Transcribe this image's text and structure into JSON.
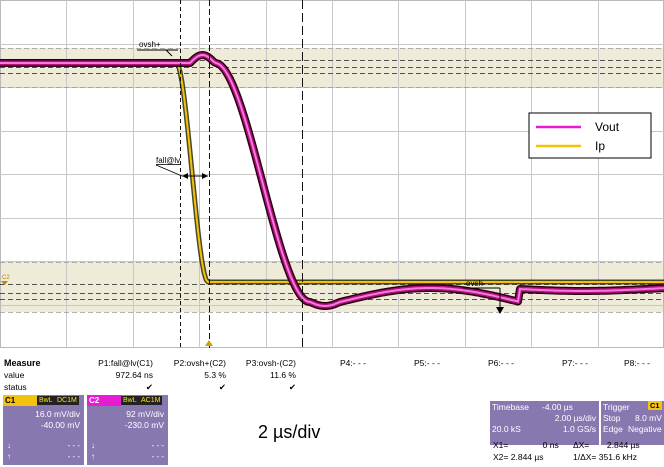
{
  "plot": {
    "overshoot_plus_label": "ovsh+",
    "fall_label": "fall@lv",
    "overshoot_minus_label": "ovsh-",
    "channel2_marker": "C2",
    "legend": [
      {
        "name": "Vout",
        "color": "#e81bd4"
      },
      {
        "name": "Ip",
        "color": "#f2c20f"
      }
    ]
  },
  "measure": {
    "title": "Measure",
    "row_labels": [
      "value",
      "status"
    ],
    "params": [
      {
        "name": "P1:fall@lv(C1)",
        "value": "972.64 ns",
        "status": "✔"
      },
      {
        "name": "P2:ovsh+(C2)",
        "value": "5.3 %",
        "status": "✔"
      },
      {
        "name": "P3:ovsh-(C2)",
        "value": "11.6 %",
        "status": "✔"
      },
      {
        "name": "P4:- - -",
        "value": "",
        "status": ""
      },
      {
        "name": "P5:- - -",
        "value": "",
        "status": ""
      },
      {
        "name": "P6:- - -",
        "value": "",
        "status": ""
      },
      {
        "name": "P7:- - -",
        "value": "",
        "status": ""
      },
      {
        "name": "P8:- - -",
        "value": "",
        "status": ""
      }
    ]
  },
  "channels": [
    {
      "label": "C1",
      "badge1": "BwL",
      "badge2": "DC1M",
      "color": "#f2c20f",
      "vdiv": "16.0 mV/div",
      "offset": "-40.00 mV",
      "dash1": "- - -",
      "dash2": "- - -"
    },
    {
      "label": "C2",
      "badge1": "BwL",
      "badge2": "AC1M",
      "color": "#e81bd4",
      "vdiv": "92 mV/div",
      "offset": "-230.0 mV",
      "dash1": "- - -",
      "dash2": "- - -"
    }
  ],
  "caption": "2 µs/div",
  "timebase": {
    "title": "Timebase",
    "delay": "-4.00 µs",
    "per_div": "2.00 µs/div",
    "samples": "20.0 kS",
    "rate": "1.0 GS/s"
  },
  "trigger": {
    "title": "Trigger",
    "channel": "C1",
    "mode": "Stop",
    "level": "8.0 mV",
    "type": "Edge",
    "slope": "Negative"
  },
  "cursors": {
    "x1_label": "X1=",
    "x1_value": "0 ns",
    "dx_label": "ΔX=",
    "dx_value": "2.844 µs",
    "x2_label": "X2=",
    "x2_value": "2.844 µs",
    "inv_dx_label": "1/ΔX=",
    "inv_dx_value": "351.6 kHz"
  }
}
